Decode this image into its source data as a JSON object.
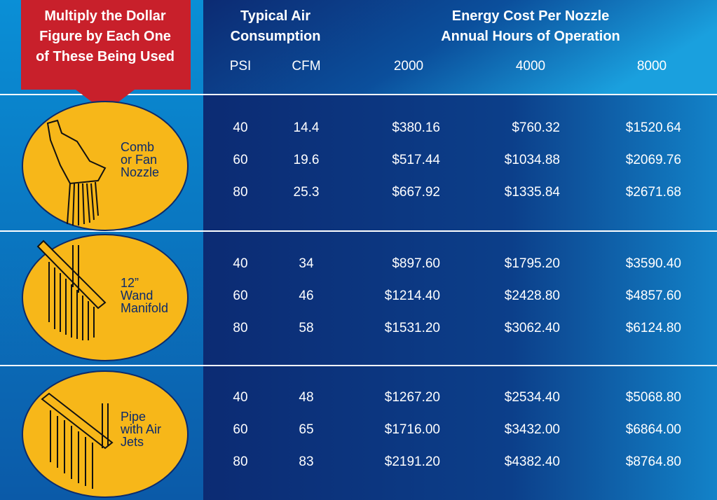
{
  "callout": [
    "Multiply the Dollar",
    "Figure by Each One",
    "of These Being Used"
  ],
  "header": {
    "air_title": [
      "Typical  Air",
      "Consumption"
    ],
    "cost_title": [
      "Energy Cost Per Nozzle",
      "Annual Hours of Operation"
    ],
    "columns": [
      "PSI",
      "CFM",
      "2000",
      "4000",
      "8000"
    ]
  },
  "groups": [
    {
      "label": [
        "Comb",
        "or Fan",
        "Nozzle"
      ],
      "rows": [
        [
          "40",
          "14.4",
          "$380.16",
          "$760.32",
          "$1520.64"
        ],
        [
          "60",
          "19.6",
          "$517.44",
          "$1034.88",
          "$2069.76"
        ],
        [
          "80",
          "25.3",
          "$667.92",
          "$1335.84",
          "$2671.68"
        ]
      ]
    },
    {
      "label": [
        "12”",
        "Wand",
        "Manifold"
      ],
      "rows": [
        [
          "40",
          "34",
          "$897.60",
          "$1795.20",
          "$3590.40"
        ],
        [
          "60",
          "46",
          "$1214.40",
          "$2428.80",
          "$4857.60"
        ],
        [
          "80",
          "58",
          "$1531.20",
          "$3062.40",
          "$6124.80"
        ]
      ]
    },
    {
      "label": [
        "Pipe",
        "with Air",
        "Jets"
      ],
      "rows": [
        [
          "40",
          "48",
          "$1267.20",
          "$2534.40",
          "$5068.80"
        ],
        [
          "60",
          "65",
          "$1716.00",
          "$3432.00",
          "$6864.00"
        ],
        [
          "80",
          "83",
          "$2191.20",
          "$4382.40",
          "$8764.80"
        ]
      ]
    }
  ]
}
